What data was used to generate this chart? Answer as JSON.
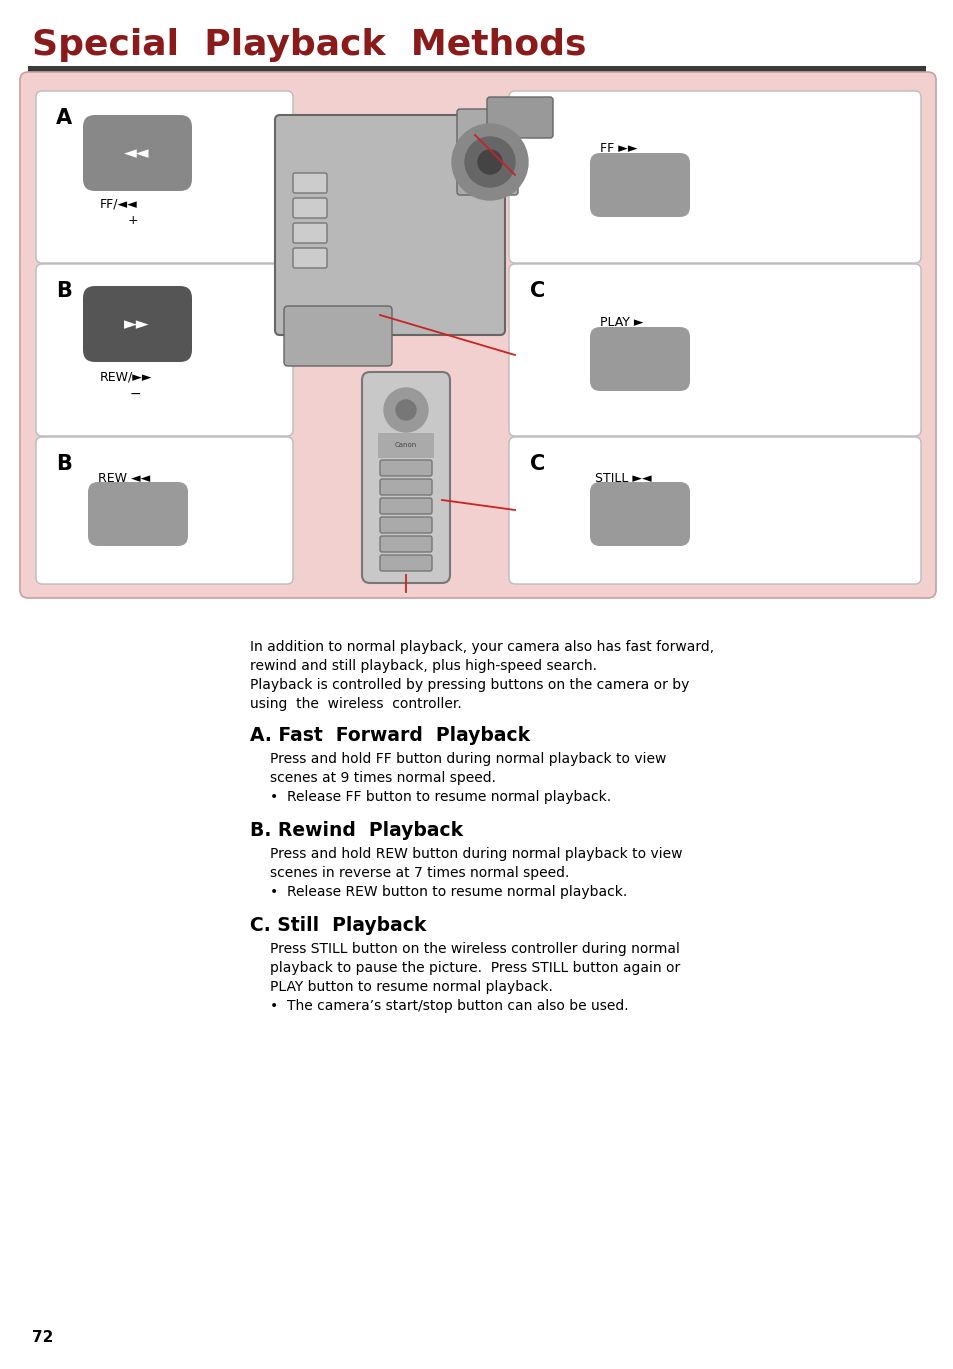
{
  "title": "Special  Playback  Methods",
  "title_color": "#8B1A1A",
  "title_fontsize": 26,
  "background_color": "#FFFFFF",
  "pink_bg": "#F2D0D0",
  "page_number": "72",
  "intro_line1": "In addition to normal playback, your camera also has fast forward,",
  "intro_line2": "rewind and still playback, plus high-speed search.",
  "intro_line3": "Playback is controlled by pressing buttons on the camera or by",
  "intro_line4": "using  the  wireless  controller.",
  "section_A_title": "A. Fast  Forward  Playback",
  "section_A_line1": "Press and hold FF button during normal playback to view",
  "section_A_line2": "scenes at 9 times normal speed.",
  "section_A_bullet": "•  Release FF button to resume normal playback.",
  "section_B_title": "B. Rewind  Playback",
  "section_B_line1": "Press and hold REW button during normal playback to view",
  "section_B_line2": "scenes in reverse at 7 times normal speed.",
  "section_B_bullet": "•  Release REW button to resume normal playback.",
  "section_C_title": "C. Still  Playback",
  "section_C_line1": "Press STILL button on the wireless controller during normal",
  "section_C_line2": "playback to pause the picture.  Press STILL button again or",
  "section_C_line3": "PLAY button to resume normal playback.",
  "section_C_bullet": "•  The camera’s start/stop button can also be used."
}
